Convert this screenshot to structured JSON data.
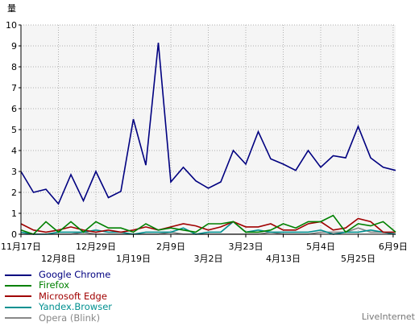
{
  "chart_data": {
    "type": "line",
    "ylabel": "量",
    "ylim": [
      0,
      10
    ],
    "yticks": [
      "0",
      "1",
      "2",
      "3",
      "4",
      "5",
      "6",
      "7",
      "8",
      "9",
      "10"
    ],
    "grid": true,
    "legend_position": "bottom-left",
    "x_tick_labels_row1": [
      "11月17日",
      "12月29日",
      "2月9日",
      "3月23日",
      "5月4日",
      "6月9日"
    ],
    "x_tick_labels_row2": [
      "12月8日",
      "1月19日",
      "3月2日",
      "4月13日",
      "5月25日"
    ],
    "x_tick_positions_row1": [
      0,
      6,
      12,
      18,
      24,
      29.8
    ],
    "x_tick_positions_row2": [
      3,
      9,
      15,
      21,
      27
    ],
    "x_points": 31,
    "series": [
      {
        "name": "Google Chrome",
        "color": "#000080",
        "values": [
          3.0,
          2.0,
          2.15,
          1.45,
          2.85,
          1.6,
          3.0,
          1.75,
          2.05,
          5.5,
          3.3,
          9.15,
          2.5,
          3.2,
          2.55,
          2.2,
          2.5,
          4.0,
          3.35,
          4.9,
          3.6,
          3.35,
          3.05,
          4.0,
          3.2,
          3.75,
          3.65,
          5.15,
          3.65,
          3.2,
          3.05
        ]
      },
      {
        "name": "Firefox",
        "color": "#008000",
        "values": [
          0.2,
          0.0,
          0.6,
          0.1,
          0.6,
          0.1,
          0.6,
          0.3,
          0.3,
          0.1,
          0.5,
          0.2,
          0.3,
          0.2,
          0.1,
          0.5,
          0.5,
          0.6,
          0.1,
          0.1,
          0.2,
          0.5,
          0.3,
          0.6,
          0.6,
          0.9,
          0.1,
          0.5,
          0.4,
          0.6,
          0.1
        ]
      },
      {
        "name": "Microsoft Edge",
        "color": "#a00000",
        "values": [
          0.5,
          0.2,
          0.1,
          0.2,
          0.35,
          0.2,
          0.1,
          0.2,
          0.1,
          0.2,
          0.35,
          0.2,
          0.35,
          0.5,
          0.4,
          0.2,
          0.35,
          0.6,
          0.35,
          0.35,
          0.5,
          0.2,
          0.2,
          0.5,
          0.6,
          0.2,
          0.3,
          0.75,
          0.6,
          0.1,
          0.1
        ]
      },
      {
        "name": "Yandex.Browser",
        "color": "#009090",
        "values": [
          0.1,
          0.0,
          0.0,
          0.1,
          0.1,
          0.1,
          0.2,
          0.1,
          0.1,
          0.0,
          0.1,
          0.1,
          0.1,
          0.3,
          0.0,
          0.1,
          0.1,
          0.6,
          0.1,
          0.2,
          0.1,
          0.1,
          0.1,
          0.1,
          0.2,
          0.0,
          0.1,
          0.1,
          0.2,
          0.1,
          0.0
        ]
      },
      {
        "name": "Opera (Blink)",
        "color": "#888888",
        "values": [
          0.0,
          0.0,
          0.0,
          0.0,
          0.0,
          0.1,
          0.0,
          0.0,
          0.0,
          0.0,
          0.0,
          0.0,
          0.1,
          0.0,
          0.0,
          0.0,
          0.0,
          0.0,
          0.0,
          0.0,
          0.1,
          0.0,
          0.0,
          0.0,
          0.1,
          0.1,
          0.1,
          0.3,
          0.1,
          0.1,
          0.0
        ]
      }
    ]
  },
  "watermark": "LiveInternet"
}
